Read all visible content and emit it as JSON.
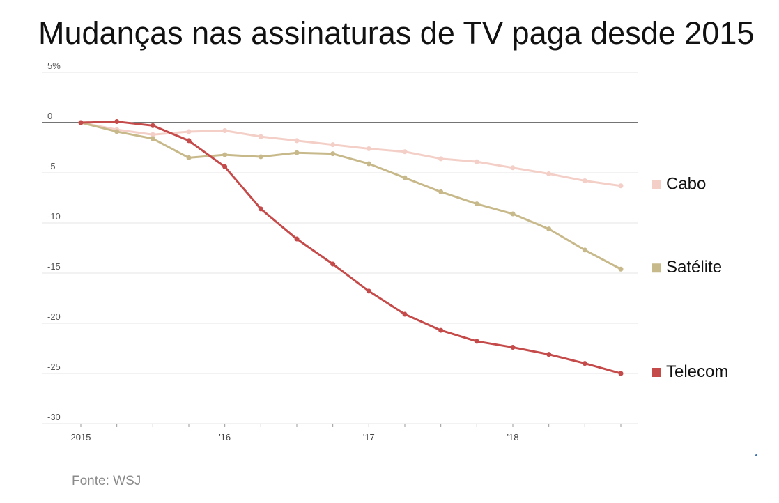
{
  "chart_data": {
    "type": "line",
    "title": "Mudanças nas assinaturas de TV paga desde 2015",
    "source": "Fonte: WSJ",
    "x": [
      2015.0,
      2015.25,
      2015.5,
      2015.75,
      2016.0,
      2016.25,
      2016.5,
      2016.75,
      2017.0,
      2017.25,
      2017.5,
      2017.75,
      2018.0,
      2018.25,
      2018.5,
      2018.75
    ],
    "x_ticks": [
      {
        "value": 2015,
        "label": "2015"
      },
      {
        "value": 2016,
        "label": "'16"
      },
      {
        "value": 2017,
        "label": "'17"
      },
      {
        "value": 2018,
        "label": "'18"
      }
    ],
    "ylim": [
      -30,
      5
    ],
    "y_ticks": [
      {
        "value": 5,
        "label": "5%"
      },
      {
        "value": 0,
        "label": "0"
      },
      {
        "value": -5,
        "label": "-5"
      },
      {
        "value": -10,
        "label": "-10"
      },
      {
        "value": -15,
        "label": "-15"
      },
      {
        "value": -20,
        "label": "-20"
      },
      {
        "value": -25,
        "label": "-25"
      },
      {
        "value": -30,
        "label": "-30"
      }
    ],
    "grid": true,
    "legend": "right",
    "series": [
      {
        "name": "Cabo",
        "color": "#f3cfc7",
        "values": [
          0,
          -0.7,
          -1.2,
          -0.9,
          -0.8,
          -1.4,
          -1.8,
          -2.2,
          -2.6,
          -2.9,
          -3.6,
          -3.9,
          -4.5,
          -5.1,
          -5.8,
          -6.3
        ]
      },
      {
        "name": "Satélite",
        "color": "#c8b98b",
        "values": [
          0,
          -0.9,
          -1.6,
          -3.5,
          -3.2,
          -3.4,
          -3.0,
          -3.1,
          -4.1,
          -5.5,
          -6.9,
          -8.1,
          -9.1,
          -10.6,
          -12.7,
          -14.6
        ]
      },
      {
        "name": "Telecom",
        "color": "#c54a4a",
        "values": [
          0,
          0.1,
          -0.3,
          -1.8,
          -4.4,
          -8.6,
          -11.6,
          -14.1,
          -16.8,
          -19.1,
          -20.7,
          -21.8,
          -22.4,
          -23.1,
          -24.0,
          -25.0
        ]
      }
    ]
  }
}
